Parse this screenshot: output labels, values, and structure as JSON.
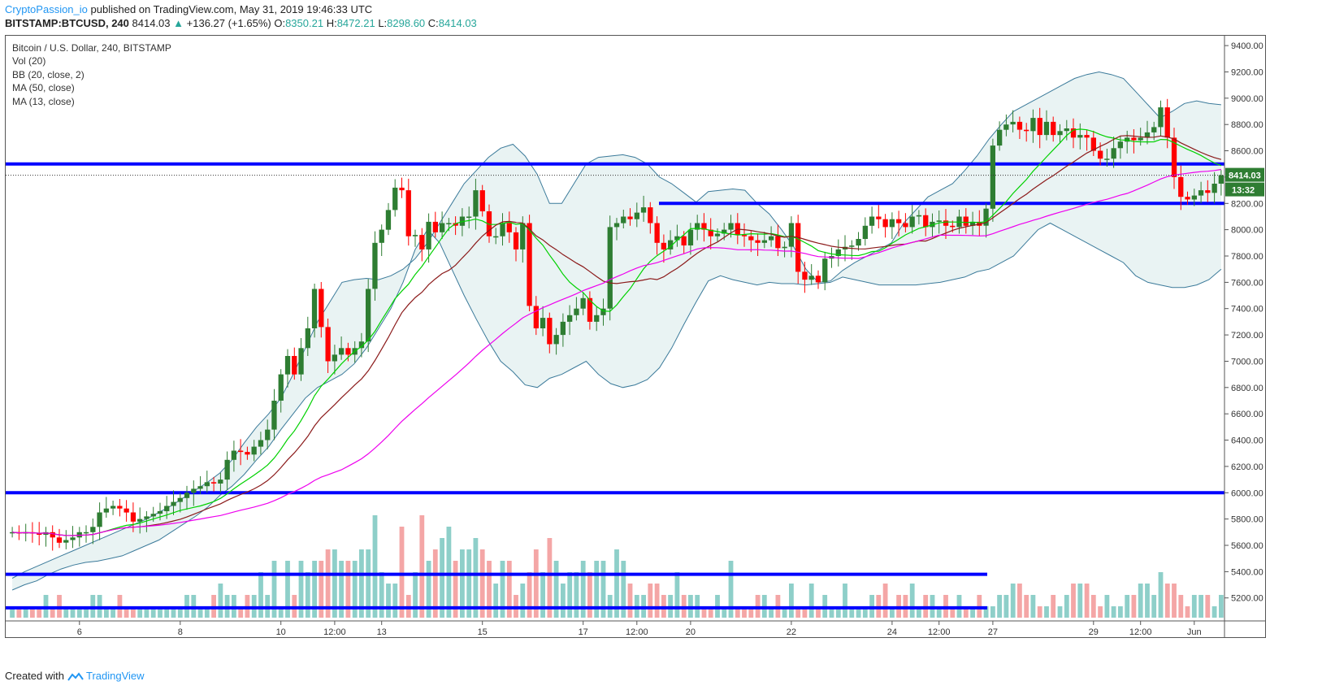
{
  "header": {
    "author": "CryptoPassion_io",
    "published_text": "published on TradingView.com, May 31, 2019 19:46:33 UTC",
    "symbol": "BITSTAMP:BTCUSD, 240",
    "last": "8414.03",
    "change_arrow": "▲",
    "change": "+136.27 (+1.65%)",
    "o_label": "O:",
    "o_value": "8350.21",
    "h_label": "H:",
    "h_value": "8472.21",
    "l_label": "L:",
    "l_value": "8298.60",
    "c_label": "C:",
    "c_value": "8414.03"
  },
  "legend": {
    "title": "Bitcoin / U.S. Dollar, 240, BITSTAMP",
    "vol": "Vol (20)",
    "bb": "BB (20, close, 2)",
    "ma50": "MA (50, close)",
    "ma13": "MA (13, close)"
  },
  "price_tag": {
    "price": "8414.03",
    "countdown": "13:32"
  },
  "footer": {
    "created_with": "Created with",
    "brand": "TradingView"
  },
  "colors": {
    "up": "#2e7d32",
    "down": "#ff0000",
    "vol_up": "#8ecfc9",
    "vol_down": "#f4a6a6",
    "bb": "#3b7a9a",
    "bb_fill": "#e9f3f3",
    "ma13": "#00d100",
    "ma20": "#8b1a1a",
    "ma50": "#ee00ee",
    "level": "#0000ff",
    "accent": "#2196f3"
  },
  "chart_data": {
    "type": "candlestick",
    "title": "Bitcoin / U.S. Dollar, 240, BITSTAMP",
    "ylim": [
      5050,
      9450
    ],
    "yticks": [
      5200,
      5400,
      5600,
      5800,
      6000,
      6200,
      6400,
      6600,
      6800,
      7000,
      7200,
      7400,
      7600,
      7800,
      8000,
      8200,
      8400,
      8600,
      8800,
      9000,
      9200,
      9400
    ],
    "xticks": [
      {
        "i": 8,
        "label": "6"
      },
      {
        "i": 20,
        "label": "8"
      },
      {
        "i": 32,
        "label": "10"
      },
      {
        "i": 38,
        "label": "12:00"
      },
      {
        "i": 44,
        "label": "13"
      },
      {
        "i": 56,
        "label": "15"
      },
      {
        "i": 68,
        "label": "17"
      },
      {
        "i": 74,
        "label": "12:00"
      },
      {
        "i": 80,
        "label": "20"
      },
      {
        "i": 92,
        "label": "22"
      },
      {
        "i": 104,
        "label": "24"
      },
      {
        "i": 110,
        "label": "12:00"
      },
      {
        "i": 116,
        "label": "27"
      },
      {
        "i": 128,
        "label": "29"
      },
      {
        "i": 134,
        "label": "12:00"
      },
      {
        "i": 140,
        "label": "Jun"
      }
    ],
    "close": [
      5700,
      5690,
      5700,
      5690,
      5680,
      5700,
      5660,
      5620,
      5640,
      5660,
      5700,
      5700,
      5740,
      5850,
      5880,
      5900,
      5880,
      5850,
      5780,
      5800,
      5820,
      5840,
      5860,
      5900,
      5930,
      5960,
      6000,
      6030,
      6050,
      6080,
      6070,
      6100,
      6250,
      6320,
      6310,
      6290,
      6350,
      6400,
      6480,
      6700,
      6900,
      7040,
      6900,
      7100,
      7250,
      7550,
      7260,
      7000,
      7050,
      7100,
      7050,
      7100,
      7150,
      7550,
      7900,
      8000,
      8150,
      8320,
      8300,
      7950,
      7960,
      7850,
      8060,
      7980,
      8050,
      8050,
      8030,
      8100,
      8100,
      8300,
      8140,
      7950,
      7950,
      8050,
      7980,
      7850,
      8050,
      7420,
      7250,
      7330,
      7130,
      7200,
      7300,
      7350,
      7400,
      7480,
      7300,
      7350,
      7400,
      8020,
      8050,
      8100,
      8080,
      8130,
      8170,
      8050,
      7900,
      7850,
      7920,
      7950,
      7880,
      8000,
      8050,
      8000,
      7950,
      7970,
      8000,
      8050,
      7960,
      7950,
      7920,
      7900,
      7920,
      7950,
      7860,
      7870,
      8050,
      7680,
      7620,
      7650,
      7600,
      7780,
      7800,
      7850,
      7870,
      7880,
      7930,
      8030,
      8100,
      8080,
      8020,
      8080,
      8050,
      8020,
      8100,
      8110,
      8020,
      8060,
      8070,
      8030,
      8020,
      8100,
      8030,
      8060,
      8030,
      8160,
      8640,
      8760,
      8800,
      8820,
      8760,
      8750,
      8850,
      8720,
      8820,
      8720,
      8750,
      8770,
      8700,
      8720,
      8700,
      8600,
      8540,
      8540,
      8620,
      8670,
      8700,
      8680,
      8700,
      8740,
      8780,
      8930,
      8700,
      8400,
      8250,
      8230,
      8260,
      8300,
      8280,
      8350,
      8414
    ],
    "bb_upper": [
      5350,
      5400,
      5440,
      5480,
      5520,
      5560,
      5600,
      5640,
      5680,
      5720,
      5760,
      5800,
      5850,
      5900,
      5960,
      6020,
      6080,
      6150,
      6250,
      6380,
      6500,
      6600,
      6720,
      6900,
      7100,
      7300,
      7450,
      7600,
      7620,
      7630,
      7620,
      7650,
      7700,
      7780,
      7900,
      8050,
      8200,
      8350,
      8450,
      8550,
      8620,
      8650,
      8560,
      8420,
      8200,
      8200,
      8350,
      8500,
      8550,
      8560,
      8570,
      8550,
      8500,
      8400,
      8350,
      8280,
      8210,
      8290,
      8300,
      8310,
      8300,
      8200,
      8120,
      8000,
      7870,
      7700,
      7600,
      7610,
      7690,
      7750,
      7800,
      7850,
      7900,
      8050,
      8150,
      8250,
      8300,
      8350,
      8450,
      8560,
      8690,
      8800,
      8900,
      8950,
      9000,
      9050,
      9100,
      9150,
      9180,
      9200,
      9180,
      9150,
      9050,
      8950,
      8850,
      8900,
      8960,
      8980,
      8960,
      8950
    ],
    "bb_lower": [
      5260,
      5300,
      5330,
      5380,
      5420,
      5450,
      5470,
      5480,
      5500,
      5520,
      5560,
      5600,
      5640,
      5700,
      5760,
      5820,
      5890,
      5980,
      6050,
      6140,
      6250,
      6350,
      6480,
      6600,
      6720,
      6800,
      6850,
      6900,
      6980,
      7100,
      7250,
      7400,
      7600,
      7850,
      8000,
      7900,
      7700,
      7500,
      7320,
      7150,
      7000,
      6920,
      6820,
      6800,
      6870,
      6900,
      6950,
      7000,
      6900,
      6830,
      6800,
      6820,
      6860,
      6950,
      7100,
      7280,
      7450,
      7610,
      7650,
      7620,
      7600,
      7580,
      7600,
      7590,
      7590,
      7580,
      7590,
      7600,
      7640,
      7620,
      7600,
      7580,
      7580,
      7580,
      7580,
      7590,
      7600,
      7620,
      7640,
      7680,
      7700,
      7750,
      7800,
      7900,
      8000,
      8050,
      8000,
      7950,
      7900,
      7850,
      7800,
      7750,
      7650,
      7600,
      7580,
      7560,
      7560,
      7580,
      7620,
      7700
    ],
    "level_lines": [
      8500,
      8200,
      6000,
      5380,
      5125
    ],
    "vol": [
      1,
      1,
      1,
      1,
      1,
      2,
      1,
      2,
      0,
      0,
      1,
      1,
      2,
      2,
      1,
      1,
      2,
      1,
      1,
      0,
      1,
      0,
      0,
      1,
      1,
      1,
      2,
      2,
      1,
      1,
      2,
      3,
      2,
      2,
      1,
      2,
      2,
      4,
      2,
      5,
      1,
      5,
      2,
      5,
      4,
      5,
      5,
      6,
      6,
      5,
      5,
      5,
      6,
      6,
      9,
      4,
      3,
      3,
      8,
      2,
      4,
      9,
      5,
      6,
      7,
      8,
      5,
      6,
      6,
      7,
      6,
      5,
      3,
      5,
      5,
      2,
      3,
      4,
      6,
      4,
      7,
      5,
      3,
      4,
      4,
      5,
      4,
      5,
      5,
      2,
      6,
      5,
      3,
      2,
      2,
      3,
      3,
      2,
      2,
      4,
      2,
      2,
      2,
      1,
      1,
      2,
      1,
      5,
      1,
      1,
      1,
      2,
      2,
      1,
      2,
      1,
      3,
      1,
      1,
      3,
      1,
      2,
      1,
      1,
      3,
      1,
      1,
      1,
      2,
      2,
      3,
      1,
      2,
      2,
      3,
      1,
      2,
      2,
      1,
      2,
      1,
      2,
      1,
      1,
      2,
      1,
      1,
      2,
      2,
      3,
      3,
      2,
      2,
      1,
      1,
      2,
      1,
      2,
      3,
      3,
      3,
      2,
      1,
      2,
      1,
      1,
      2,
      2,
      3,
      3,
      2,
      4,
      3,
      3,
      2,
      1,
      2,
      2,
      2,
      1,
      2,
      3,
      2,
      2,
      2,
      1,
      2,
      2,
      2,
      4,
      6,
      6,
      6,
      2,
      3,
      5,
      4,
      4,
      2,
      1,
      2,
      2,
      3,
      3,
      2,
      2,
      3
    ]
  }
}
